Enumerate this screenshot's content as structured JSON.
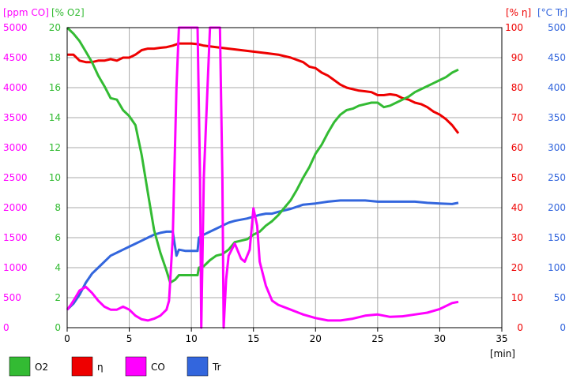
{
  "chart_data": {
    "type": "line",
    "x_axis": {
      "label": "[min]",
      "range": [
        0,
        35
      ],
      "ticks": [
        "0",
        "5",
        "10",
        "15",
        "20",
        "25",
        "30",
        "35"
      ]
    },
    "grid": true,
    "axes": {
      "co": {
        "label": "[ppm CO]",
        "color": "#ff00ff",
        "range": [
          0,
          5000
        ],
        "ticks": [
          "0",
          "500",
          "1000",
          "1500",
          "2000",
          "2500",
          "3000",
          "3500",
          "4000",
          "4500",
          "5000"
        ]
      },
      "o2": {
        "label": "[% O2]",
        "color": "#33bb33",
        "range": [
          0,
          20
        ],
        "ticks": [
          "0",
          "2",
          "4",
          "6",
          "8",
          "10",
          "12",
          "14",
          "16",
          "18",
          "20"
        ]
      },
      "eta": {
        "label": "[% η]",
        "color": "#ee0000",
        "range": [
          0,
          100
        ],
        "ticks": [
          "0",
          "10",
          "20",
          "30",
          "40",
          "50",
          "60",
          "70",
          "80",
          "90",
          "100"
        ]
      },
      "tr": {
        "label": "[°C Tr]",
        "color": "#3366dd",
        "range": [
          0,
          500
        ],
        "ticks": [
          "0",
          "50",
          "100",
          "150",
          "200",
          "250",
          "300",
          "350",
          "400",
          "450",
          "500"
        ]
      }
    },
    "series": [
      {
        "name": "O2",
        "key": "o2",
        "color": "#33bb33",
        "x": [
          0,
          0.5,
          1,
          1.5,
          2,
          2.5,
          3,
          3.5,
          4,
          4.5,
          5,
          5.5,
          6,
          6.5,
          7,
          7.5,
          8,
          8.3,
          8.7,
          9,
          9.5,
          10,
          10.5,
          10.6,
          11,
          11.5,
          12,
          12.5,
          13,
          13.5,
          14,
          14.5,
          15,
          15.5,
          16,
          16.5,
          17,
          17.5,
          18,
          18.5,
          19,
          19.5,
          20,
          20.5,
          21,
          21.5,
          22,
          22.5,
          23,
          23.5,
          24,
          24.5,
          25,
          25.5,
          26,
          26.5,
          27,
          27.5,
          28,
          28.5,
          29,
          29.5,
          30,
          30.5,
          31,
          31.5
        ],
        "y": [
          20,
          19.6,
          19.1,
          18.4,
          17.7,
          16.8,
          16.1,
          15.3,
          15.2,
          14.5,
          14.1,
          13.5,
          11.5,
          9,
          6.5,
          5,
          3.8,
          3,
          3.2,
          3.5,
          3.5,
          3.5,
          3.5,
          4,
          4.1,
          4.5,
          4.8,
          4.9,
          5.2,
          5.7,
          5.8,
          5.9,
          6.2,
          6.4,
          6.8,
          7.1,
          7.5,
          8,
          8.5,
          9.2,
          10,
          10.7,
          11.6,
          12.2,
          13,
          13.7,
          14.2,
          14.5,
          14.6,
          14.8,
          14.9,
          15,
          15,
          14.7,
          14.8,
          15,
          15.2,
          15.4,
          15.7,
          15.9,
          16.1,
          16.3,
          16.5,
          16.7,
          17,
          17.2
        ]
      },
      {
        "name": "η",
        "key": "eta",
        "color": "#ee0000",
        "x": [
          0,
          0.5,
          1,
          1.5,
          2,
          2.5,
          3,
          3.5,
          4,
          4.5,
          5,
          5.5,
          6,
          6.5,
          7,
          7.5,
          8,
          8.5,
          9,
          9.5,
          10,
          10.5,
          11,
          12,
          13,
          14,
          15,
          16,
          17,
          18,
          19,
          19.5,
          20,
          20.5,
          21,
          21.5,
          22,
          22.5,
          23,
          23.5,
          24,
          24.5,
          25,
          25.5,
          26,
          26.5,
          27,
          27.5,
          28,
          28.5,
          29,
          29.5,
          30,
          30.5,
          31,
          31.5
        ],
        "y": [
          91,
          91,
          89,
          88.5,
          88.5,
          89,
          89,
          89.5,
          89,
          90,
          90,
          91,
          92.5,
          93,
          93,
          93.3,
          93.5,
          94,
          94.7,
          94.7,
          94.7,
          94.5,
          94,
          93.5,
          93,
          92.5,
          92,
          91.5,
          91,
          90,
          88.5,
          87,
          86.5,
          85,
          84,
          82.5,
          81,
          80,
          79.5,
          79,
          78.8,
          78.5,
          77.5,
          77.5,
          77.8,
          77.5,
          76.5,
          76,
          75,
          74.5,
          73.5,
          72,
          71,
          69.5,
          67.5,
          64.8
        ]
      },
      {
        "name": "CO",
        "key": "co",
        "color": "#ff00ff",
        "x": [
          0,
          0.3,
          0.6,
          1,
          1.5,
          2,
          2.5,
          3,
          3.5,
          4,
          4.5,
          5,
          5.5,
          6,
          6.5,
          7,
          7.5,
          8,
          8.2,
          8.5,
          8.8,
          9,
          9.5,
          10,
          10.4,
          10.5,
          10.7,
          10.8,
          11,
          11.5,
          12,
          12.3,
          12.5,
          12.6,
          12.8,
          13,
          13.5,
          14,
          14.3,
          14.7,
          15,
          15.3,
          15.5,
          16,
          16.5,
          17,
          18,
          19,
          20,
          21,
          22,
          23,
          24,
          25,
          26,
          27,
          28,
          29,
          30,
          31,
          31.5
        ],
        "y": [
          300,
          380,
          480,
          620,
          680,
          580,
          450,
          350,
          300,
          300,
          350,
          300,
          200,
          140,
          120,
          150,
          200,
          300,
          450,
          1500,
          4000,
          5000,
          5000,
          5000,
          5000,
          5000,
          2500,
          0,
          2500,
          5000,
          5000,
          5000,
          2500,
          0,
          800,
          1200,
          1400,
          1150,
          1100,
          1300,
          1990,
          1700,
          1100,
          700,
          450,
          380,
          300,
          220,
          160,
          120,
          120,
          150,
          200,
          220,
          180,
          190,
          220,
          250,
          310,
          410,
          430
        ]
      },
      {
        "name": "Tr",
        "key": "tr",
        "color": "#3366dd",
        "x": [
          0,
          0.5,
          1,
          1.5,
          2,
          2.5,
          3,
          3.5,
          4,
          4.5,
          5,
          5.5,
          6,
          6.5,
          7,
          7.5,
          8,
          8.5,
          8.8,
          9,
          9.5,
          10,
          10.5,
          10.6,
          11,
          11.5,
          12,
          12.5,
          13,
          13.5,
          14,
          14.5,
          15,
          15.5,
          16,
          16.5,
          17,
          18,
          19,
          20,
          21,
          22,
          23,
          24,
          25,
          26,
          27,
          28,
          29,
          30,
          31,
          31.5
        ],
        "y": [
          30,
          40,
          55,
          75,
          90,
          100,
          110,
          120,
          125,
          130,
          135,
          140,
          145,
          150,
          155,
          158,
          160,
          160,
          120,
          130,
          128,
          128,
          128,
          150,
          155,
          160,
          165,
          170,
          175,
          178,
          180,
          182,
          185,
          188,
          190,
          190,
          193,
          198,
          205,
          207,
          210,
          212,
          212,
          212,
          210,
          210,
          210,
          210,
          208,
          207,
          206,
          208
        ]
      }
    ],
    "legend": {
      "placement": "bottom",
      "items": [
        {
          "label": "O2",
          "color": "#33bb33"
        },
        {
          "label": "η",
          "color": "#ee0000"
        },
        {
          "label": "CO",
          "color": "#ff00ff"
        },
        {
          "label": "Tr",
          "color": "#3366dd"
        }
      ]
    }
  }
}
